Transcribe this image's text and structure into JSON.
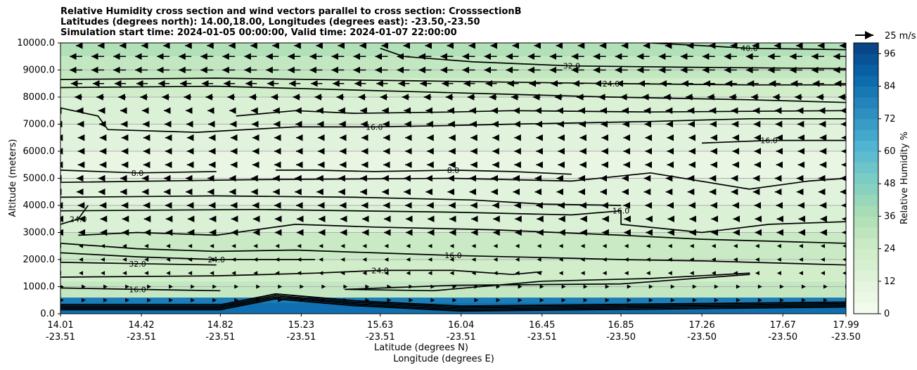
{
  "chart_data": {
    "type": "heatmap",
    "title_lines": [
      "Relative Humidity cross section and wind vectors parallel to cross section: CrosssectionB",
      "Latitudes (degrees north): 14.00,18.00, Longitudes (degrees east): -23.50,-23.50",
      "Simulation start time: 2024-01-05 00:00:00, Valid time: 2024-01-07 22:00:00"
    ],
    "xlabel_lat": "Latitude (degrees N)",
    "xlabel_lon": "Longitude (degrees E)",
    "ylabel": "Altitude (meters)",
    "colorbar_label": "Relative Humidity %",
    "colorbar_ticks": [
      "0",
      "12",
      "24",
      "36",
      "48",
      "60",
      "72",
      "84",
      "96"
    ],
    "colorbar_range": [
      0,
      100
    ],
    "ylim": [
      0,
      10000
    ],
    "xlim": [
      14.01,
      17.99
    ],
    "y_ticks": [
      {
        "v": 0,
        "label": "0.0"
      },
      {
        "v": 1000,
        "label": "1000.0"
      },
      {
        "v": 2000,
        "label": "2000.0"
      },
      {
        "v": 3000,
        "label": "3000.0"
      },
      {
        "v": 4000,
        "label": "4000.0"
      },
      {
        "v": 5000,
        "label": "5000.0"
      },
      {
        "v": 6000,
        "label": "6000.0"
      },
      {
        "v": 7000,
        "label": "7000.0"
      },
      {
        "v": 8000,
        "label": "8000.0"
      },
      {
        "v": 9000,
        "label": "9000.0"
      },
      {
        "v": 10000,
        "label": "10000.0"
      }
    ],
    "x_ticks": [
      {
        "lat": "14.01",
        "lon": "-23.51"
      },
      {
        "lat": "14.42",
        "lon": "-23.51"
      },
      {
        "lat": "14.82",
        "lon": "-23.51"
      },
      {
        "lat": "15.23",
        "lon": "-23.51"
      },
      {
        "lat": "15.63",
        "lon": "-23.51"
      },
      {
        "lat": "16.04",
        "lon": "-23.51"
      },
      {
        "lat": "16.45",
        "lon": "-23.51"
      },
      {
        "lat": "16.85",
        "lon": "-23.50"
      },
      {
        "lat": "17.26",
        "lon": "-23.50"
      },
      {
        "lat": "17.67",
        "lon": "-23.50"
      },
      {
        "lat": "17.99",
        "lon": "-23.50"
      }
    ],
    "quiver_key": "25 m/s",
    "humidity_bands": [
      {
        "alt": 0,
        "rh": 85
      },
      {
        "alt": 300,
        "rh": 80
      },
      {
        "alt": 600,
        "rh": 28
      },
      {
        "alt": 1200,
        "rh": 22
      },
      {
        "alt": 2000,
        "rh": 26
      },
      {
        "alt": 3000,
        "rh": 16
      },
      {
        "alt": 4000,
        "rh": 12
      },
      {
        "alt": 5000,
        "rh": 8
      },
      {
        "alt": 6000,
        "rh": 12
      },
      {
        "alt": 7000,
        "rh": 16
      },
      {
        "alt": 8000,
        "rh": 22
      },
      {
        "alt": 8700,
        "rh": 28
      },
      {
        "alt": 9500,
        "rh": 34
      },
      {
        "alt": 10000,
        "rh": 38
      }
    ],
    "contours": [
      {
        "label": "32.0",
        "pts": [
          [
            15.63,
            9800
          ],
          [
            15.75,
            9500
          ],
          [
            16.1,
            9300
          ],
          [
            16.6,
            9150
          ],
          [
            17.2,
            9100
          ],
          [
            17.99,
            9050
          ]
        ]
      },
      {
        "label": "40.0",
        "pts": [
          [
            17.0,
            10000
          ],
          [
            17.26,
            9900
          ],
          [
            17.5,
            9800
          ],
          [
            17.99,
            9750
          ]
        ]
      },
      {
        "label": "24.0",
        "pts": [
          [
            14.01,
            8650
          ],
          [
            14.8,
            8700
          ],
          [
            15.8,
            8600
          ],
          [
            16.8,
            8500
          ],
          [
            17.5,
            8450
          ],
          [
            17.99,
            8450
          ]
        ]
      },
      {
        "label": "",
        "pts": [
          [
            14.01,
            8350
          ],
          [
            14.8,
            8400
          ],
          [
            15.8,
            8200
          ],
          [
            16.8,
            8000
          ],
          [
            17.5,
            7900
          ],
          [
            17.99,
            7800
          ]
        ]
      },
      {
        "label": "16.0",
        "pts": [
          [
            14.01,
            7600
          ],
          [
            14.2,
            7300
          ],
          [
            14.25,
            6800
          ],
          [
            14.7,
            6700
          ],
          [
            15.2,
            6900
          ],
          [
            15.6,
            6900
          ],
          [
            16.0,
            6950
          ],
          [
            16.3,
            7000
          ],
          [
            17.0,
            7100
          ],
          [
            17.5,
            7200
          ],
          [
            17.99,
            7200
          ]
        ]
      },
      {
        "label": "",
        "pts": [
          [
            14.9,
            7300
          ],
          [
            15.2,
            7500
          ],
          [
            15.5,
            7400
          ],
          [
            16.0,
            7450
          ],
          [
            16.3,
            7500
          ],
          [
            17.0,
            7450
          ],
          [
            17.99,
            7500
          ]
        ]
      },
      {
        "label": "16.0",
        "pts": [
          [
            17.26,
            6300
          ],
          [
            17.6,
            6400
          ],
          [
            17.99,
            6400
          ]
        ]
      },
      {
        "label": "8.0",
        "pts": [
          [
            14.01,
            5300
          ],
          [
            14.4,
            5200
          ],
          [
            14.8,
            5250
          ]
        ]
      },
      {
        "label": "8.0",
        "pts": [
          [
            15.1,
            5300
          ],
          [
            15.3,
            5300
          ],
          [
            15.6,
            5250
          ],
          [
            16.0,
            5300
          ],
          [
            16.3,
            5250
          ],
          [
            16.45,
            5200
          ],
          [
            16.6,
            5150
          ]
        ]
      },
      {
        "label": "",
        "pts": [
          [
            14.01,
            4850
          ],
          [
            15.0,
            4950
          ],
          [
            16.0,
            5000
          ],
          [
            16.6,
            4900
          ],
          [
            17.0,
            5200
          ],
          [
            17.5,
            4600
          ],
          [
            17.8,
            4900
          ],
          [
            17.99,
            5000
          ]
        ]
      },
      {
        "label": "",
        "pts": [
          [
            14.01,
            4300
          ],
          [
            14.8,
            4350
          ],
          [
            15.5,
            4300
          ],
          [
            16.1,
            4200
          ],
          [
            16.45,
            4050
          ],
          [
            16.85,
            4000
          ]
        ]
      },
      {
        "label": "16.0",
        "pts": [
          [
            14.01,
            3800
          ],
          [
            15.0,
            3850
          ],
          [
            16.0,
            3750
          ],
          [
            16.6,
            3650
          ],
          [
            16.85,
            3800
          ],
          [
            16.85,
            3300
          ],
          [
            17.26,
            3000
          ],
          [
            17.6,
            3300
          ],
          [
            17.99,
            3400
          ]
        ]
      },
      {
        "label": "24.0",
        "pts": [
          [
            14.01,
            3300
          ],
          [
            14.1,
            3500
          ],
          [
            14.15,
            4000
          ]
        ]
      },
      {
        "label": "",
        "pts": [
          [
            14.1,
            2900
          ],
          [
            14.4,
            3000
          ],
          [
            14.8,
            2900
          ],
          [
            15.2,
            3300
          ],
          [
            15.6,
            3200
          ],
          [
            16.2,
            3100
          ],
          [
            16.85,
            2900
          ],
          [
            17.26,
            2750
          ],
          [
            17.99,
            2600
          ]
        ]
      },
      {
        "label": "16.0",
        "pts": [
          [
            14.01,
            2600
          ],
          [
            14.4,
            2400
          ],
          [
            14.8,
            2300
          ],
          [
            15.2,
            2350
          ],
          [
            15.6,
            2250
          ],
          [
            16.0,
            2150
          ],
          [
            16.6,
            2050
          ],
          [
            16.85,
            2000
          ],
          [
            17.26,
            1950
          ],
          [
            17.99,
            1800
          ]
        ]
      },
      {
        "label": "24.0",
        "pts": [
          [
            14.01,
            2250
          ],
          [
            14.4,
            2100
          ],
          [
            14.8,
            2000
          ],
          [
            15.3,
            2000
          ]
        ]
      },
      {
        "label": "32.0",
        "pts": [
          [
            14.01,
            1900
          ],
          [
            14.4,
            1850
          ],
          [
            14.8,
            1800
          ]
        ]
      },
      {
        "label": "24.0",
        "pts": [
          [
            14.01,
            1350
          ],
          [
            14.8,
            1400
          ],
          [
            15.3,
            1500
          ],
          [
            15.63,
            1600
          ],
          [
            16.0,
            1600
          ],
          [
            16.3,
            1450
          ],
          [
            16.45,
            1550
          ]
        ]
      },
      {
        "label": "",
        "pts": [
          [
            15.45,
            900
          ],
          [
            15.9,
            850
          ],
          [
            16.45,
            1200
          ],
          [
            17.0,
            1300
          ],
          [
            17.5,
            1500
          ],
          [
            17.5,
            1450
          ],
          [
            16.85,
            1100
          ],
          [
            16.0,
            1050
          ],
          [
            15.45,
            900
          ]
        ]
      },
      {
        "label": "16.0",
        "pts": [
          [
            14.01,
            950
          ],
          [
            14.4,
            900
          ],
          [
            14.82,
            850
          ]
        ]
      }
    ],
    "wind_levels": [
      {
        "alt": 9900,
        "u": -0.5
      },
      {
        "alt": 9500,
        "u": -1.0
      },
      {
        "alt": 9000,
        "u": -1.0
      },
      {
        "alt": 8500,
        "u": -0.9
      },
      {
        "alt": 8000,
        "u": -0.6
      },
      {
        "alt": 7500,
        "u": -0.45
      },
      {
        "alt": 7000,
        "u": -0.4
      },
      {
        "alt": 6500,
        "u": -0.35
      },
      {
        "alt": 6000,
        "u": -0.35
      },
      {
        "alt": 5500,
        "u": -0.35
      },
      {
        "alt": 5000,
        "u": -0.45
      },
      {
        "alt": 4500,
        "u": -0.45
      },
      {
        "alt": 4000,
        "u": -0.35
      },
      {
        "alt": 3500,
        "u": -0.3
      },
      {
        "alt": 3000,
        "u": -0.3
      },
      {
        "alt": 2500,
        "u": -0.25
      },
      {
        "alt": 2000,
        "u": -0.2
      },
      {
        "alt": 1500,
        "u": -0.15
      },
      {
        "alt": 1000,
        "u": 0.1
      },
      {
        "alt": 500,
        "u": 0.2
      }
    ],
    "colors": {
      "cmap": [
        "#f7fcf0",
        "#e0f3db",
        "#ccebc5",
        "#a8ddb5",
        "#7bccc4",
        "#4eb3d3",
        "#2b8cbe",
        "#0868ac",
        "#084081"
      ],
      "contour": "#000000",
      "grid": "#b0b0b0"
    }
  }
}
